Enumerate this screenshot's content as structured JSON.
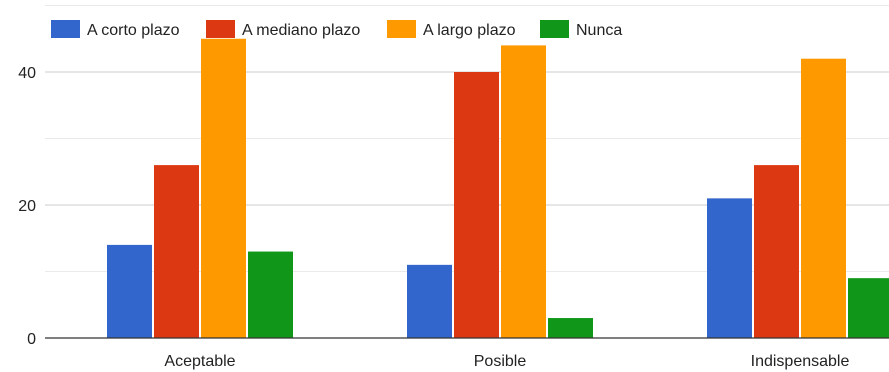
{
  "chart_data": {
    "type": "bar",
    "title": "",
    "xlabel": "",
    "ylabel": "",
    "categories": [
      "Aceptable",
      "Posible",
      "Indispensable"
    ],
    "series": [
      {
        "name": "A corto plazo",
        "color": "#3366cc",
        "values": [
          14,
          11,
          21
        ]
      },
      {
        "name": "A mediano plazo",
        "color": "#dc3912",
        "values": [
          26,
          40,
          26
        ]
      },
      {
        "name": "A largo plazo",
        "color": "#ff9900",
        "values": [
          45,
          44,
          42
        ]
      },
      {
        "name": "Nunca",
        "color": "#109618",
        "values": [
          13,
          3,
          9
        ]
      }
    ],
    "yticks": [
      0,
      20,
      40
    ],
    "ylim": [
      0,
      50
    ],
    "grid": true,
    "legend_position": "top-left"
  }
}
